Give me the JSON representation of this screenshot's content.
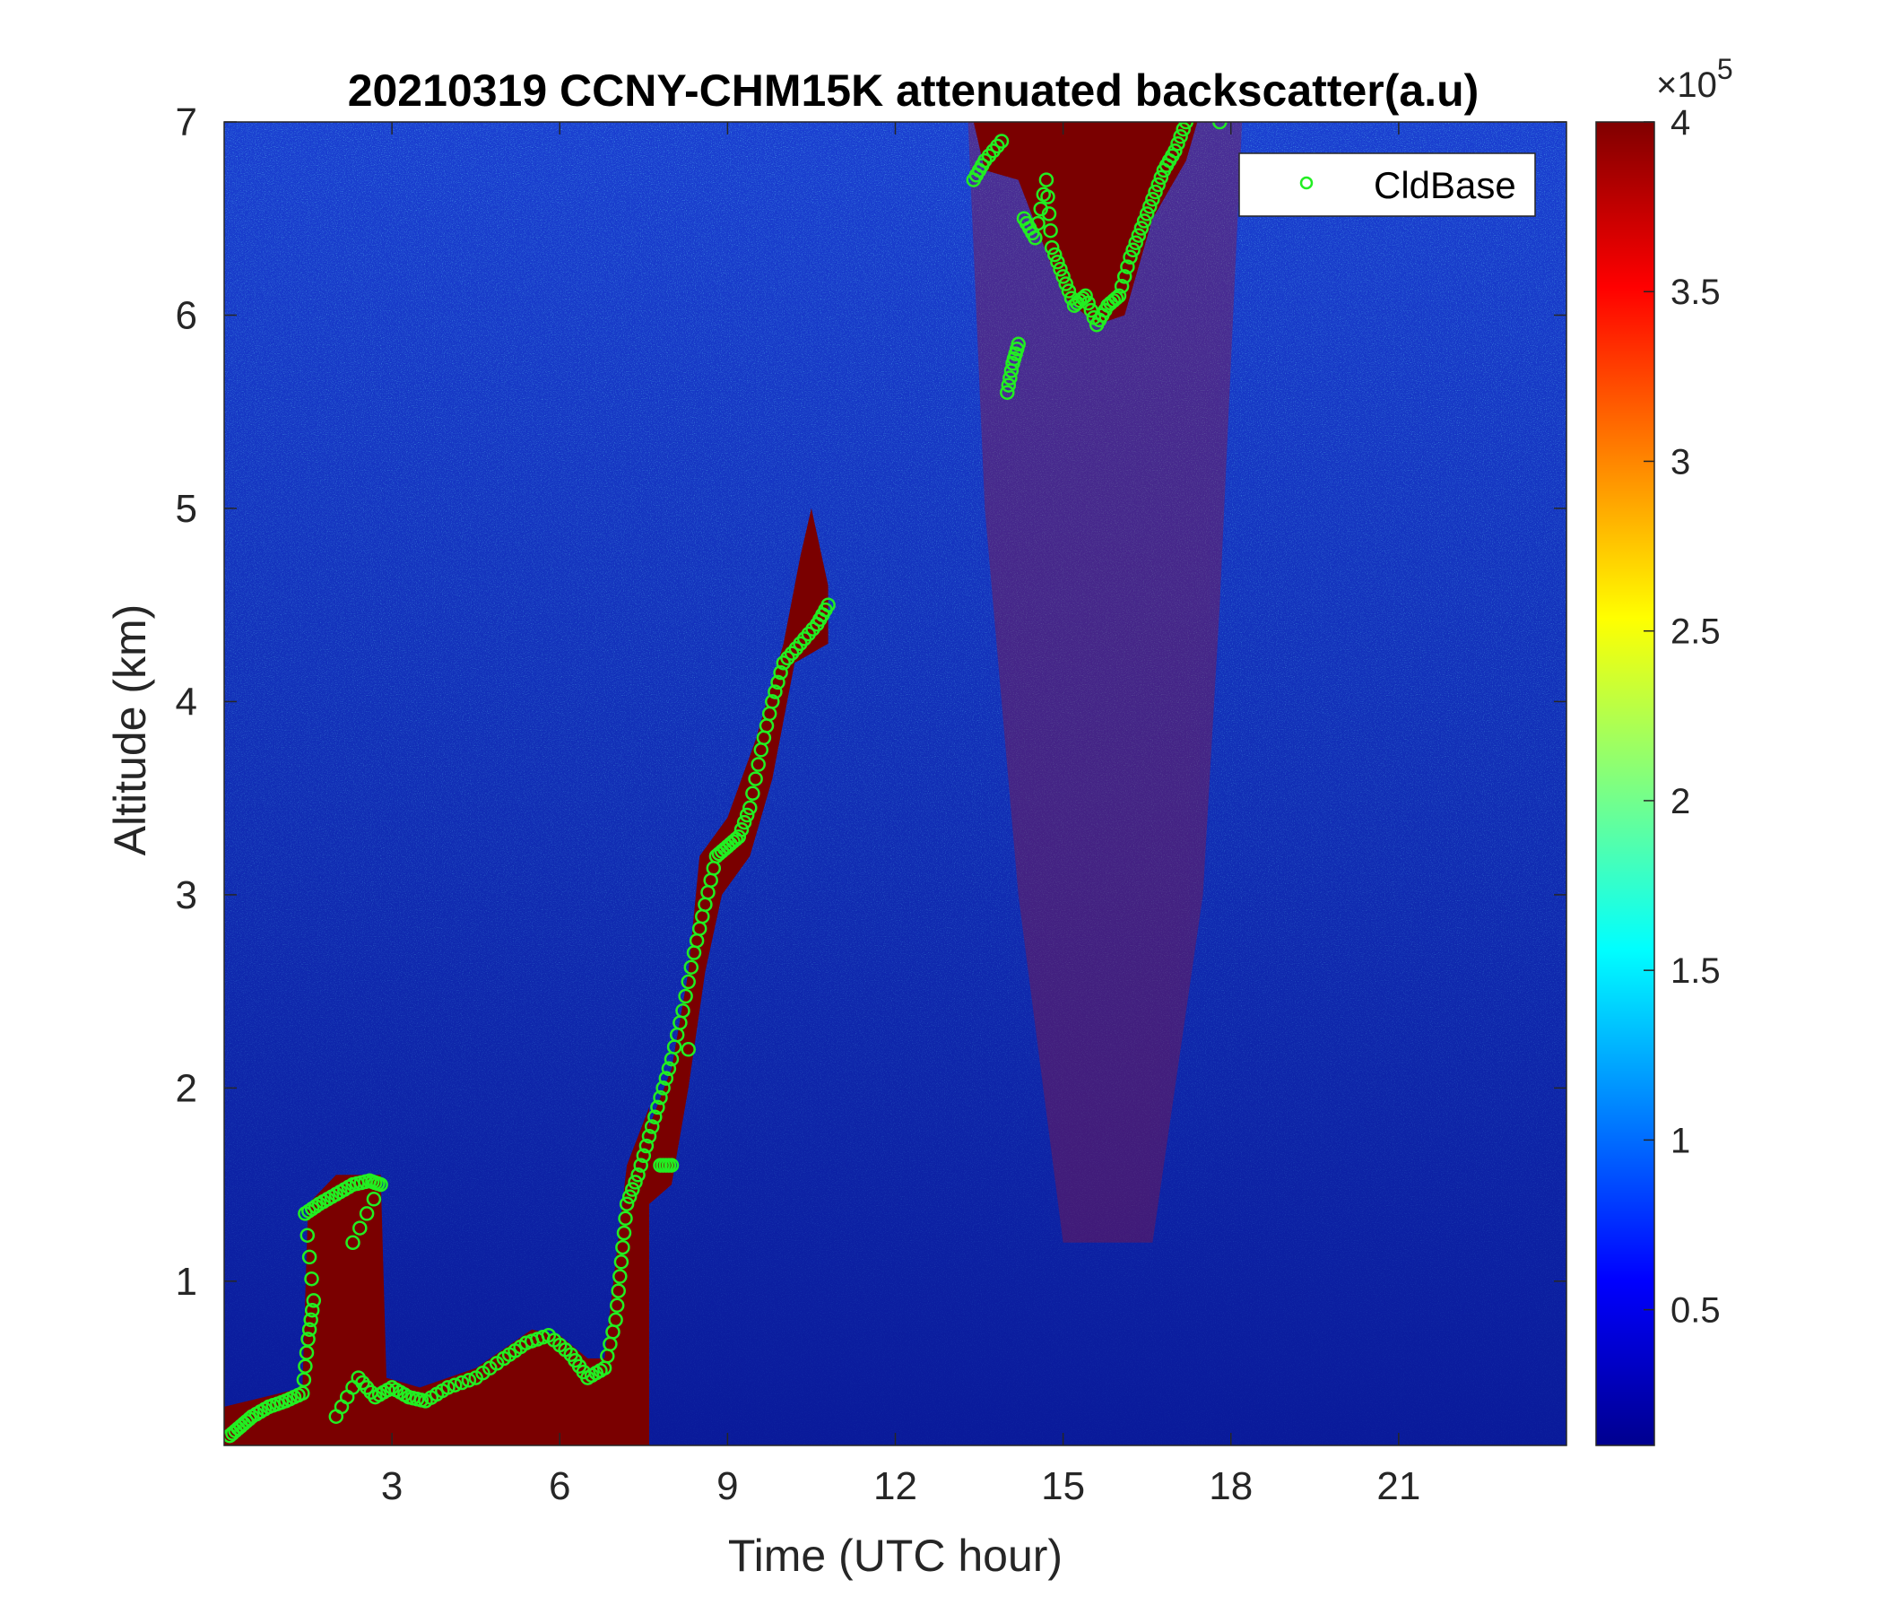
{
  "chart_data": {
    "type": "heatmap",
    "title": "20210319 CCNY-CHM15K attenuated backscatter(a.u)",
    "xlabel": "Time (UTC hour)",
    "ylabel": "Altitude (km)",
    "xlim": [
      0,
      24
    ],
    "ylim": [
      0.15,
      7
    ],
    "xticks": [
      3,
      6,
      9,
      12,
      15,
      18,
      21
    ],
    "yticks": [
      1,
      2,
      3,
      4,
      5,
      6,
      7
    ],
    "colormap": "jet",
    "colorbar": {
      "clim": [
        0.1,
        4
      ],
      "ticks": [
        0.5,
        1,
        1.5,
        2,
        2.5,
        3,
        3.5,
        4
      ],
      "multiplier_base": "×10",
      "multiplier_exp": "5"
    },
    "legend": {
      "placement": "top-right",
      "entries": [
        "CldBase"
      ]
    },
    "colors": {
      "cldbase_marker": "#22ee22"
    },
    "series": [
      {
        "name": "CldBase",
        "marker": "circle",
        "points": [
          [
            0.1,
            0.2
          ],
          [
            0.3,
            0.25
          ],
          [
            0.5,
            0.3
          ],
          [
            0.8,
            0.35
          ],
          [
            1.1,
            0.38
          ],
          [
            1.4,
            0.42
          ],
          [
            1.5,
            0.7
          ],
          [
            1.6,
            0.9
          ],
          [
            1.45,
            1.35
          ],
          [
            1.7,
            1.4
          ],
          [
            2.0,
            1.45
          ],
          [
            2.3,
            1.5
          ],
          [
            2.6,
            1.52
          ],
          [
            2.8,
            1.5
          ],
          [
            2.3,
            1.2
          ],
          [
            2.0,
            0.3
          ],
          [
            2.4,
            0.5
          ],
          [
            2.7,
            0.4
          ],
          [
            3.0,
            0.45
          ],
          [
            3.3,
            0.4
          ],
          [
            3.6,
            0.38
          ],
          [
            4.0,
            0.45
          ],
          [
            4.5,
            0.5
          ],
          [
            5.0,
            0.6
          ],
          [
            5.4,
            0.68
          ],
          [
            5.8,
            0.72
          ],
          [
            6.2,
            0.62
          ],
          [
            6.5,
            0.5
          ],
          [
            6.8,
            0.55
          ],
          [
            7.0,
            0.8
          ],
          [
            7.1,
            1.1
          ],
          [
            7.2,
            1.4
          ],
          [
            7.4,
            1.55
          ],
          [
            7.6,
            1.75
          ],
          [
            7.8,
            1.95
          ],
          [
            8.0,
            2.15
          ],
          [
            8.2,
            2.4
          ],
          [
            8.4,
            2.7
          ],
          [
            8.6,
            2.95
          ],
          [
            8.8,
            3.2
          ],
          [
            9.0,
            3.25
          ],
          [
            9.2,
            3.3
          ],
          [
            9.4,
            3.45
          ],
          [
            9.6,
            3.75
          ],
          [
            9.8,
            4.0
          ],
          [
            10.0,
            4.2
          ],
          [
            10.3,
            4.3
          ],
          [
            10.6,
            4.4
          ],
          [
            10.8,
            4.5
          ],
          [
            7.8,
            1.6
          ],
          [
            8.0,
            1.6
          ],
          [
            8.3,
            2.2
          ],
          [
            13.4,
            6.7
          ],
          [
            13.6,
            6.8
          ],
          [
            13.9,
            6.9
          ],
          [
            14.0,
            5.6
          ],
          [
            14.1,
            5.75
          ],
          [
            14.2,
            5.85
          ],
          [
            14.3,
            6.5
          ],
          [
            14.5,
            6.4
          ],
          [
            14.7,
            6.7
          ],
          [
            14.8,
            6.35
          ],
          [
            15.0,
            6.2
          ],
          [
            15.2,
            6.05
          ],
          [
            15.4,
            6.1
          ],
          [
            15.6,
            5.95
          ],
          [
            15.8,
            6.05
          ],
          [
            16.0,
            6.1
          ],
          [
            16.2,
            6.3
          ],
          [
            16.4,
            6.45
          ],
          [
            16.6,
            6.6
          ],
          [
            16.8,
            6.75
          ],
          [
            17.0,
            6.85
          ],
          [
            17.2,
            7.0
          ],
          [
            17.8,
            7.0
          ]
        ]
      }
    ]
  }
}
